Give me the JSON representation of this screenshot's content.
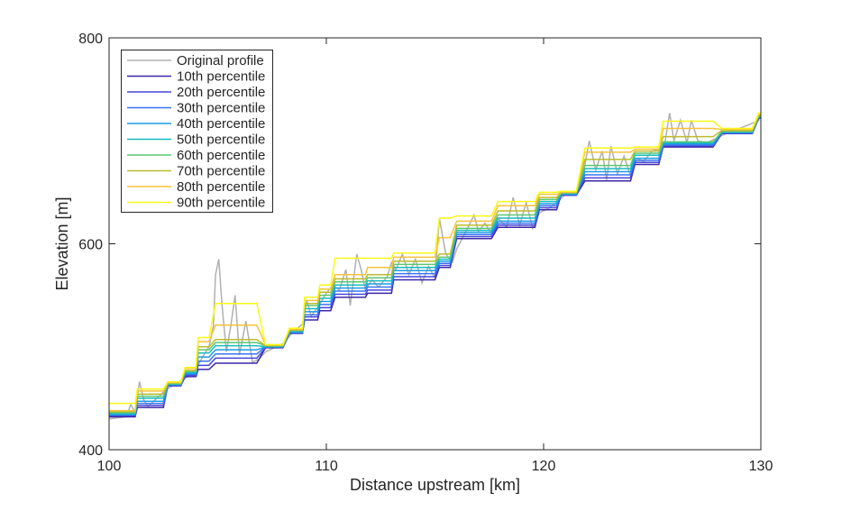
{
  "chart_data": {
    "type": "line",
    "title": "",
    "xlabel": "Distance upstream [km]",
    "ylabel": "Elevation [m]",
    "xlim": [
      100,
      130
    ],
    "ylim": [
      400,
      800
    ],
    "xticks": [
      100,
      110,
      120,
      130
    ],
    "yticks": [
      400,
      600,
      800
    ],
    "grid": false,
    "legend_position": "top-left",
    "original_profile": {
      "name": "Original profile",
      "color": "#b0b0b0",
      "x": [
        100,
        100.8,
        101.0,
        101.2,
        101.4,
        101.6,
        101.8,
        102.2,
        102.6,
        103.0,
        103.4,
        103.7,
        104.0,
        104.3,
        104.6,
        104.8,
        104.9,
        105.05,
        105.2,
        105.4,
        105.6,
        105.8,
        106.0,
        106.3,
        106.6,
        106.9,
        107.2,
        107.5,
        108.0,
        108.5,
        108.9,
        109.1,
        109.3,
        109.6,
        110.0,
        110.3,
        110.6,
        110.9,
        111.1,
        111.4,
        111.6,
        111.8,
        112.1,
        112.4,
        112.8,
        113.0,
        113.2,
        113.5,
        113.8,
        114.1,
        114.4,
        114.7,
        115.0,
        115.2,
        115.5,
        115.8,
        116.0,
        116.3,
        116.5,
        116.8,
        117.0,
        117.3,
        117.6,
        117.9,
        118.3,
        118.6,
        118.9,
        119.2,
        119.5,
        119.8,
        120.2,
        120.6,
        121.0,
        121.5,
        121.8,
        122.1,
        122.4,
        122.7,
        122.9,
        123.1,
        123.4,
        123.7,
        124.0,
        124.3,
        124.6,
        125.0,
        125.3,
        125.6,
        125.8,
        126.0,
        126.3,
        126.6,
        126.8,
        127.1,
        127.5,
        128.0,
        128.5,
        129.0,
        129.5,
        129.9,
        130
      ],
      "y": [
        430,
        432,
        444,
        436,
        466,
        448,
        442,
        450,
        458,
        463,
        468,
        472,
        478,
        490,
        500,
        520,
        570,
        585,
        540,
        495,
        520,
        550,
        492,
        525,
        485,
        488,
        495,
        498,
        503,
        515,
        522,
        545,
        530,
        538,
        552,
        560,
        555,
        575,
        540,
        590,
        575,
        555,
        565,
        558,
        568,
        582,
        575,
        590,
        570,
        585,
        562,
        578,
        567,
        625,
        590,
        582,
        595,
        607,
        615,
        628,
        612,
        620,
        610,
        625,
        616,
        645,
        618,
        640,
        615,
        630,
        634,
        640,
        648,
        650,
        665,
        700,
        672,
        690,
        662,
        695,
        668,
        685,
        666,
        683,
        680,
        690,
        692,
        700,
        727,
        700,
        720,
        698,
        720,
        700,
        698,
        703,
        708,
        712,
        716,
        720,
        726
      ]
    },
    "segments_km": [
      [
        100,
        101.2
      ],
      [
        101.3,
        102.5
      ],
      [
        102.7,
        103.3
      ],
      [
        103.5,
        104.0
      ],
      [
        104.1,
        104.6
      ],
      [
        104.9,
        106.8
      ],
      [
        107.2,
        108.0
      ],
      [
        108.3,
        108.9
      ],
      [
        109.0,
        109.6
      ],
      [
        109.7,
        110.2
      ],
      [
        110.4,
        111.8
      ],
      [
        111.9,
        113.0
      ],
      [
        113.1,
        115.0
      ],
      [
        115.2,
        115.7
      ],
      [
        116.0,
        117.6
      ],
      [
        117.9,
        119.6
      ],
      [
        119.8,
        120.6
      ],
      [
        120.8,
        121.5
      ],
      [
        121.9,
        124.0
      ],
      [
        124.2,
        125.3
      ],
      [
        125.5,
        127.8
      ],
      [
        128.2,
        129.6
      ],
      [
        129.9,
        130
      ]
    ],
    "series": [
      {
        "name": "10th percentile",
        "color": "#3e26a8",
        "values": [
          432,
          441,
          462,
          471,
          478,
          484,
          499,
          513,
          526,
          535,
          548,
          552,
          565,
          577,
          605,
          616,
          633,
          647,
          661,
          677,
          694,
          707,
          722
        ]
      },
      {
        "name": "20th percentile",
        "color": "#4746d8",
        "values": [
          433,
          443,
          462,
          472,
          482,
          489,
          499,
          513,
          529,
          538,
          551,
          555,
          568,
          579,
          607,
          618,
          635,
          647,
          664,
          679,
          695,
          707,
          722
        ]
      },
      {
        "name": "30th percentile",
        "color": "#3874f4",
        "values": [
          434,
          445,
          463,
          473,
          486,
          493,
          500,
          514,
          531,
          541,
          554,
          558,
          571,
          581,
          609,
          620,
          637,
          648,
          667,
          681,
          696,
          708,
          723
        ]
      },
      {
        "name": "40th percentile",
        "color": "#1c9ce6",
        "values": [
          434,
          447,
          463,
          474,
          490,
          497,
          500,
          514,
          534,
          544,
          557,
          561,
          574,
          583,
          611,
          622,
          639,
          648,
          670,
          683,
          697,
          708,
          723
        ]
      },
      {
        "name": "50th percentile",
        "color": "#17bcc0",
        "values": [
          435,
          450,
          464,
          475,
          494,
          501,
          500,
          515,
          537,
          547,
          560,
          564,
          577,
          585,
          613,
          625,
          641,
          649,
          673,
          686,
          698,
          709,
          724
        ]
      },
      {
        "name": "60th percentile",
        "color": "#5cc772",
        "values": [
          436,
          452,
          464,
          476,
          497,
          504,
          501,
          516,
          540,
          550,
          563,
          567,
          580,
          587,
          615,
          628,
          643,
          649,
          676,
          688,
          699,
          709,
          724
        ]
      },
      {
        "name": "70th percentile",
        "color": "#bcbc2e",
        "values": [
          437,
          454,
          465,
          477,
          500,
          507,
          501,
          516,
          542,
          553,
          566,
          570,
          583,
          590,
          618,
          632,
          645,
          650,
          682,
          690,
          704,
          710,
          725
        ]
      },
      {
        "name": "80th percentile",
        "color": "#f7c33c",
        "values": [
          438,
          457,
          465,
          479,
          505,
          521,
          502,
          517,
          545,
          556,
          570,
          577,
          587,
          606,
          622,
          637,
          648,
          650,
          689,
          692,
          712,
          711,
          726
        ]
      },
      {
        "name": "90th percentile",
        "color": "#f9fa14",
        "values": [
          445,
          459,
          466,
          480,
          509,
          542,
          502,
          518,
          548,
          560,
          586,
          586,
          591,
          625,
          627,
          641,
          650,
          651,
          693,
          694,
          719,
          712,
          727
        ]
      }
    ]
  }
}
